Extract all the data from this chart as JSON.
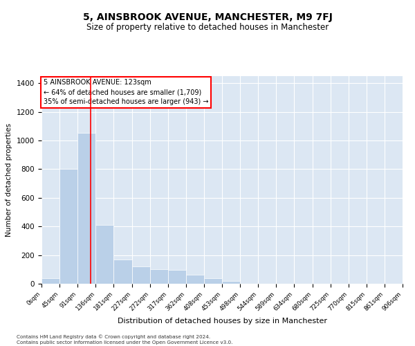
{
  "title": "5, AINSBROOK AVENUE, MANCHESTER, M9 7FJ",
  "subtitle": "Size of property relative to detached houses in Manchester",
  "xlabel": "Distribution of detached houses by size in Manchester",
  "ylabel": "Number of detached properties",
  "property_size": 123,
  "annotation_lines": [
    "5 AINSBROOK AVENUE: 123sqm",
    "← 64% of detached houses are smaller (1,709)",
    "35% of semi-detached houses are larger (943) →"
  ],
  "bar_color": "#bad0e8",
  "bar_edge_color": "white",
  "vline_color": "red",
  "annotation_box_color": "red",
  "background_color": "#dce7f3",
  "bin_edges": [
    0,
    45,
    91,
    136,
    181,
    227,
    272,
    317,
    362,
    408,
    453,
    498,
    544,
    589,
    634,
    680,
    725,
    770,
    815,
    861,
    906
  ],
  "bar_heights": [
    40,
    800,
    1055,
    410,
    170,
    120,
    100,
    95,
    65,
    40,
    20,
    0,
    0,
    0,
    0,
    0,
    0,
    0,
    0,
    0
  ],
  "ylim": [
    0,
    1450
  ],
  "yticks": [
    0,
    200,
    400,
    600,
    800,
    1000,
    1200,
    1400
  ],
  "footnote": "Contains HM Land Registry data © Crown copyright and database right 2024.\nContains public sector information licensed under the Open Government Licence v3.0.",
  "title_fontsize": 10,
  "subtitle_fontsize": 8.5
}
